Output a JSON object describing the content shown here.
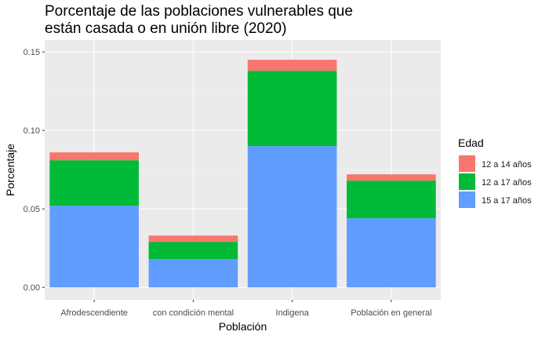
{
  "chart_data": {
    "type": "bar",
    "stacked": true,
    "title": "Porcentaje de las poblaciones vulnerables que\nestán casada o en unión libre (2020)",
    "xlabel": "Población",
    "ylabel": "Porcentaje",
    "categories": [
      "Afrodescendiente",
      "con condición mental",
      "Indigena",
      "Población en general"
    ],
    "ylim": [
      0,
      0.15
    ],
    "yticks": [
      "0.00",
      "0.05",
      "0.10",
      "0.15"
    ],
    "ytick_values": [
      0,
      0.05,
      0.1,
      0.15
    ],
    "grid": true,
    "legend": {
      "title": "Edad",
      "position": "right"
    },
    "series": [
      {
        "name": "15 a 17 años",
        "color": "#619cff",
        "values": [
          0.052,
          0.018,
          0.09,
          0.044
        ]
      },
      {
        "name": "12 a 17 años",
        "color": "#00ba38",
        "values": [
          0.029,
          0.011,
          0.048,
          0.024
        ]
      },
      {
        "name": "12 a 14 años",
        "color": "#f8766d",
        "values": [
          0.005,
          0.004,
          0.007,
          0.004
        ]
      }
    ],
    "legend_order": [
      "12 a 14 años",
      "12 a 17 años",
      "15 a 17 años"
    ]
  }
}
